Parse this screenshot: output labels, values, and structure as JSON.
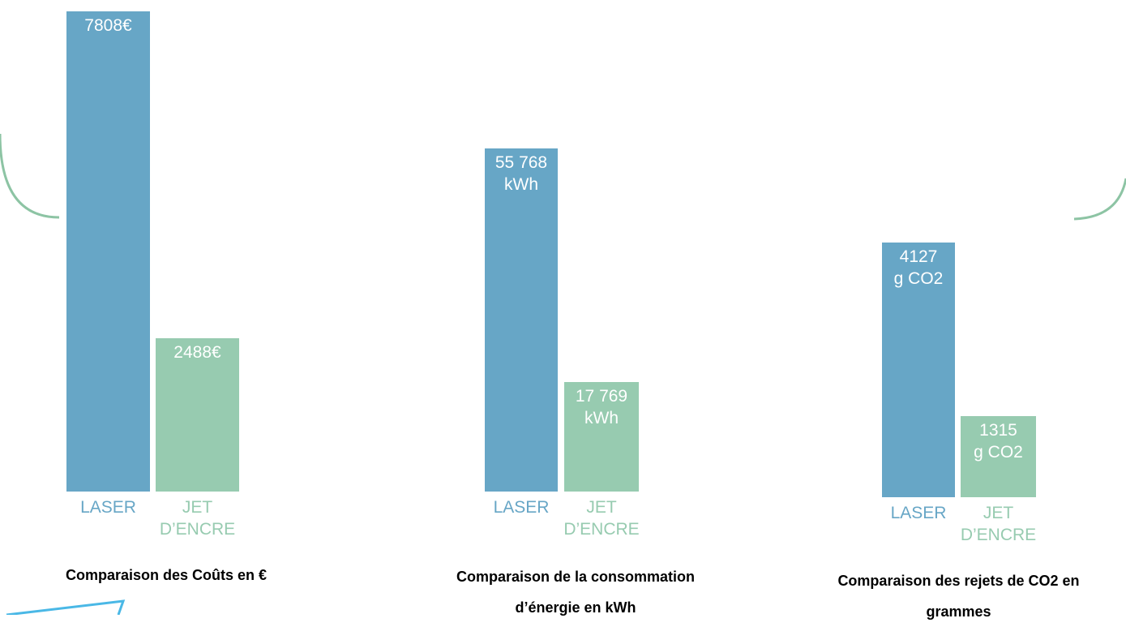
{
  "colors": {
    "laser": "#67a6c6",
    "jet": "#97cbb0",
    "frame": "#8dc4a4",
    "arrow": "#4ab8e6"
  },
  "chart_data": [
    {
      "type": "bar",
      "categories": [
        "LASER",
        "JET D’ENCRE"
      ],
      "values": [
        7808,
        2488
      ],
      "value_labels": [
        "7808€",
        "2488€"
      ],
      "title": "Comparaison des Coûts en €"
    },
    {
      "type": "bar",
      "categories": [
        "LASER",
        "JET D’ENCRE"
      ],
      "values": [
        55768,
        17769
      ],
      "value_labels": [
        "55 768 kWh",
        "17 769 kWh"
      ],
      "title": "Comparaison de la consommation d’énergie en kWh"
    },
    {
      "type": "bar",
      "categories": [
        "LASER",
        "JET D’ENCRE"
      ],
      "values": [
        4127,
        1315
      ],
      "value_labels": [
        "4127 g CO2",
        "1315 g CO2"
      ],
      "title": "Comparaison des rejets de CO2 en grammes"
    }
  ]
}
